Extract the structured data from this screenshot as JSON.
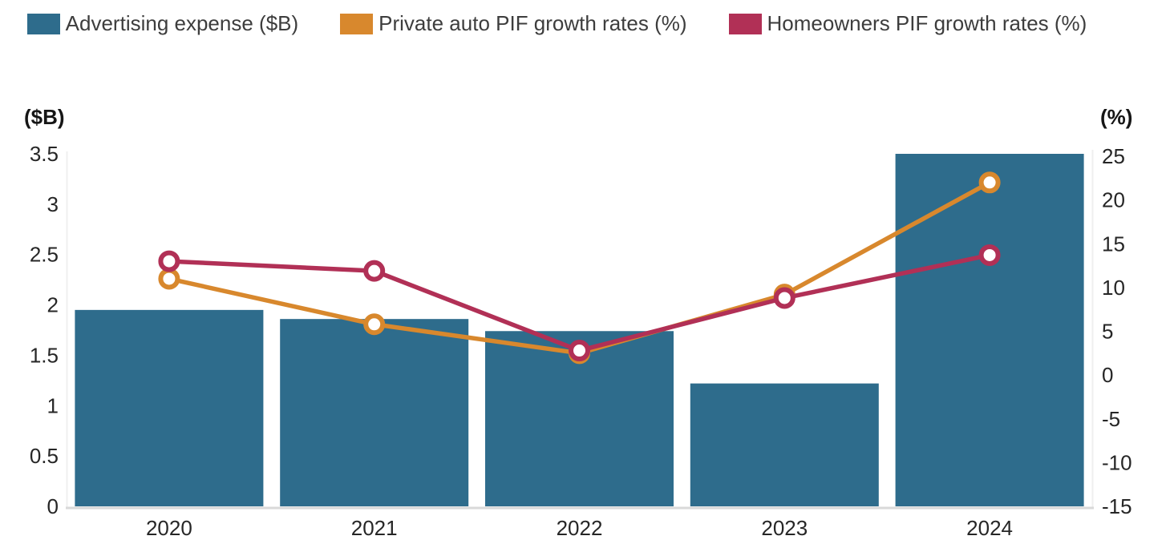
{
  "legend": {
    "items": [
      {
        "label": "Advertising expense ($B)",
        "color": "#2E6C8C",
        "marker": "bar-swatch"
      },
      {
        "label": "Private auto PIF growth rates (%)",
        "color": "#D8882D",
        "marker": "line-swatch"
      },
      {
        "label": "Homeowners PIF growth rates (%)",
        "color": "#B13056",
        "marker": "line-swatch"
      }
    ]
  },
  "chart_data": {
    "type": "combo-bar-line",
    "categories": [
      "2020",
      "2021",
      "2022",
      "2023",
      "2024"
    ],
    "series": [
      {
        "name": "Advertising expense ($B)",
        "type": "bar",
        "axis": "left",
        "color": "#2E6C8C",
        "values": [
          1.95,
          1.86,
          1.74,
          1.22,
          3.5
        ]
      },
      {
        "name": "Private auto PIF growth rates (%)",
        "type": "line",
        "axis": "right",
        "color": "#D8882D",
        "values": [
          11,
          5.8,
          2.5,
          9.2,
          22
        ]
      },
      {
        "name": "Homeowners PIF growth rates (%)",
        "type": "line",
        "axis": "right",
        "color": "#B13056",
        "values": [
          13,
          11.9,
          2.8,
          8.8,
          13.7
        ]
      }
    ],
    "left_axis": {
      "title": "($B)",
      "min": 0,
      "max": 3.5,
      "step": 0.5,
      "tick_labels": [
        "0",
        "0.5",
        "1",
        "1.5",
        "2",
        "2.5",
        "3",
        "3.5"
      ]
    },
    "right_axis": {
      "title": "(%)",
      "min": -15,
      "max": 25,
      "step": 5,
      "tick_labels": [
        "-15",
        "-10",
        "-5",
        "0",
        "5",
        "10",
        "15",
        "20",
        "25"
      ]
    },
    "grid": false,
    "legend_position": "top",
    "marker_style": "open-circle-white-fill",
    "text_color": "#262626",
    "baseline_color": "#d9d9d9"
  }
}
